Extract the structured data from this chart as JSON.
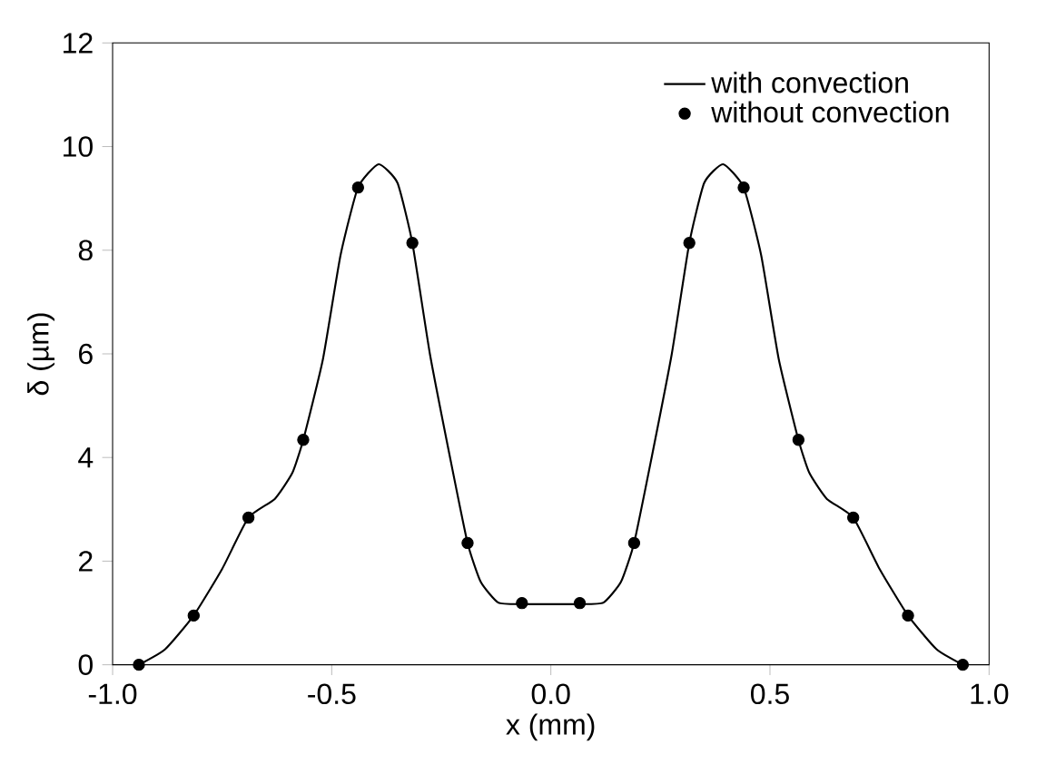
{
  "chart_data": {
    "type": "line",
    "xlabel": "x (mm)",
    "ylabel": "δ (µm)",
    "xlim": [
      -1.0,
      1.0
    ],
    "ylim": [
      0,
      12
    ],
    "xticks": [
      {
        "value": -1.0,
        "label": "-1.0"
      },
      {
        "value": -0.5,
        "label": "-0.5"
      },
      {
        "value": 0.0,
        "label": "0.0"
      },
      {
        "value": 0.5,
        "label": "0.5"
      },
      {
        "value": 1.0,
        "label": "1.0"
      }
    ],
    "yticks": [
      0,
      2,
      4,
      6,
      8,
      10,
      12
    ],
    "legend": "top right",
    "grid": false,
    "series": [
      {
        "name": "with convection",
        "color": "#000000",
        "marker": "none",
        "line_style": "solid",
        "x": [
          -0.94,
          -0.88,
          -0.815,
          -0.75,
          -0.69,
          -0.63,
          -0.59,
          -0.565,
          -0.52,
          -0.48,
          -0.44,
          -0.393,
          -0.35,
          -0.316,
          -0.276,
          -0.23,
          -0.19,
          -0.16,
          -0.12,
          -0.066,
          0,
          0.066,
          0.12,
          0.16,
          0.19,
          0.23,
          0.276,
          0.316,
          0.35,
          0.393,
          0.44,
          0.48,
          0.52,
          0.565,
          0.59,
          0.63,
          0.69,
          0.75,
          0.815,
          0.88,
          0.94
        ],
        "values": [
          0,
          0.3,
          0.95,
          1.85,
          2.84,
          3.2,
          3.7,
          4.34,
          5.9,
          7.9,
          9.21,
          9.66,
          9.3,
          8.14,
          6.0,
          4.0,
          2.35,
          1.6,
          1.2,
          1.17,
          1.17,
          1.17,
          1.2,
          1.6,
          2.35,
          4.0,
          6.0,
          8.14,
          9.3,
          9.66,
          9.21,
          7.9,
          5.9,
          4.34,
          3.7,
          3.2,
          2.84,
          1.85,
          0.95,
          0.3,
          0
        ]
      },
      {
        "name": "without convection",
        "type": "scatter",
        "color": "#000000",
        "marker": "circle",
        "x": [
          -0.94,
          -0.815,
          -0.69,
          -0.565,
          -0.44,
          -0.316,
          -0.19,
          -0.066,
          0.066,
          0.19,
          0.316,
          0.44,
          0.565,
          0.69,
          0.815,
          0.94
        ],
        "values": [
          0,
          0.95,
          2.84,
          4.34,
          9.21,
          8.14,
          2.35,
          1.19,
          1.19,
          2.35,
          8.14,
          9.21,
          4.34,
          2.84,
          0.95,
          0
        ]
      }
    ]
  }
}
